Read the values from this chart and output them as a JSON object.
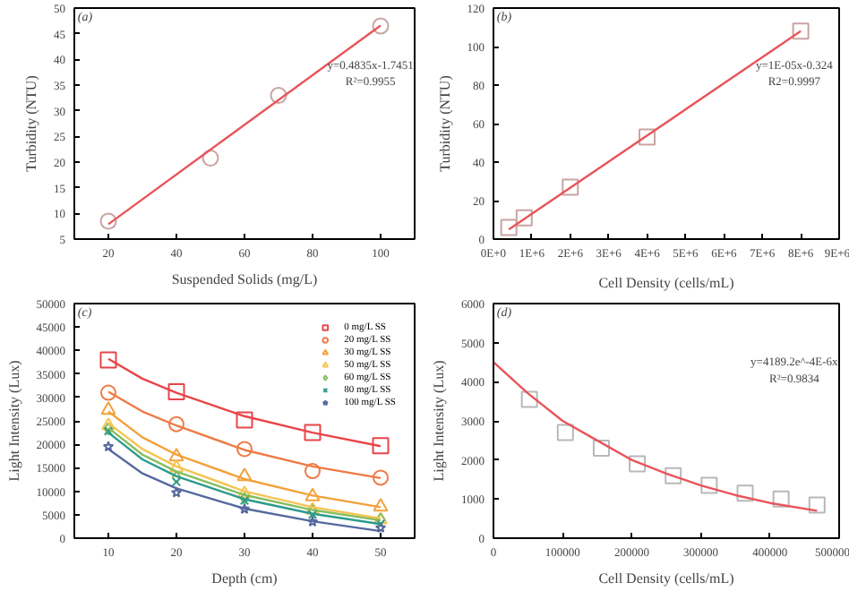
{
  "chart_data": [
    {
      "type": "scatter",
      "title": null,
      "xlabel": "Suspended Solids (mg/L)",
      "ylabel": "Turbidity (NTU)",
      "annotations": [
        "(a)",
        "y=0.4835x-1.7451",
        "R²=0.9955"
      ],
      "xlim": [
        10,
        110
      ],
      "xticks": [
        20,
        40,
        60,
        80,
        100
      ],
      "ylim": [
        5,
        50
      ],
      "yticks": [
        5,
        10,
        15,
        20,
        25,
        30,
        35,
        40,
        45,
        50
      ],
      "grid": false,
      "legend": false,
      "series": [
        {
          "marker": "circle",
          "color": "#c9a3a3",
          "x": [
            20,
            50,
            70,
            100
          ],
          "values": [
            8.5,
            20.8,
            33,
            46.5
          ]
        },
        {
          "type": "line",
          "marker": "none",
          "color": "#e8545a",
          "x": [
            20,
            100
          ],
          "values": [
            7.9,
            46.6
          ]
        }
      ]
    },
    {
      "type": "scatter",
      "xlabel": "Cell Density (cells/mL)",
      "ylabel": "Turbidity (NTU)",
      "annotations": [
        "(b)",
        "y=1E-05x-0.324",
        "R2=0.9997"
      ],
      "xlim": [
        0,
        9000000
      ],
      "xticks": [
        {
          "value": 0,
          "label": "0E+0"
        },
        {
          "value": 1000000,
          "label": "1E+6"
        },
        {
          "value": 2000000,
          "label": "2E+6"
        },
        {
          "value": 3000000,
          "label": "3E+6"
        },
        {
          "value": 4000000,
          "label": "4E+6"
        },
        {
          "value": 5000000,
          "label": "5E+6"
        },
        {
          "value": 6000000,
          "label": "6E+6"
        },
        {
          "value": 7000000,
          "label": "7E+6"
        },
        {
          "value": 8000000,
          "label": "8E+6"
        },
        {
          "value": 9000000,
          "label": "9E+6"
        }
      ],
      "ylim": [
        0,
        120
      ],
      "yticks": [
        0,
        20,
        40,
        60,
        80,
        100,
        120
      ],
      "grid": false,
      "legend": false,
      "series": [
        {
          "marker": "square",
          "color": "#c9a3a3",
          "x": [
            400000,
            800000,
            2000000,
            4000000,
            8000000
          ],
          "values": [
            6,
            11,
            27,
            53,
            108
          ]
        },
        {
          "type": "line",
          "marker": "none",
          "color": "#e8545a",
          "x": [
            400000,
            8000000
          ],
          "values": [
            5,
            108
          ]
        }
      ]
    },
    {
      "type": "line",
      "xlabel": "Depth (cm)",
      "ylabel": "Light Intensity (Lux)",
      "annotations": [
        "(c)"
      ],
      "xlim": [
        5,
        55
      ],
      "xticks": [
        10,
        20,
        30,
        40,
        50
      ],
      "ylim": [
        0,
        50000
      ],
      "yticks": [
        0,
        5000,
        10000,
        15000,
        20000,
        25000,
        30000,
        35000,
        40000,
        45000,
        50000
      ],
      "grid": false,
      "legend": "top right",
      "x": [
        10,
        20,
        30,
        40,
        50
      ],
      "series": [
        {
          "name": "0 mg/L SS",
          "type": "scatter",
          "marker": "square",
          "color": "#e8454a",
          "values": [
            38000,
            31200,
            25200,
            22500,
            19700
          ]
        },
        {
          "name": "20 mg/L SS",
          "type": "scatter",
          "marker": "circle",
          "color": "#ef7a45",
          "values": [
            31000,
            24300,
            19000,
            14300,
            12900
          ]
        },
        {
          "name": "30 mg/L SS",
          "type": "scatter",
          "marker": "triangle",
          "color": "#f3a13a",
          "values": [
            27300,
            17400,
            13200,
            8900,
            6700
          ]
        },
        {
          "name": "50 mg/L SS",
          "type": "scatter",
          "marker": "triangle",
          "color": "#f5c451",
          "values": [
            24000,
            15000,
            9500,
            6000,
            3900
          ]
        },
        {
          "name": "60 mg/L SS",
          "type": "scatter",
          "marker": "diamond",
          "color": "#86bd5e",
          "values": [
            23300,
            13000,
            8500,
            5800,
            4000
          ]
        },
        {
          "name": "80 mg/L SS",
          "type": "scatter",
          "marker": "cross",
          "color": "#2e9a8c",
          "values": [
            22800,
            12000,
            8000,
            5000,
            3000
          ]
        },
        {
          "name": "100 mg/L SS",
          "type": "scatter",
          "marker": "star",
          "color": "#56699f",
          "values": [
            19500,
            9700,
            6200,
            3500,
            2200
          ]
        },
        {
          "marker": "none",
          "color": "#e8454a",
          "x": [
            10,
            15,
            20,
            30,
            40,
            50
          ],
          "values": [
            38200,
            34000,
            31000,
            26000,
            22500,
            19600
          ]
        },
        {
          "marker": "none",
          "color": "#ef7a45",
          "x": [
            10,
            15,
            20,
            30,
            40,
            50
          ],
          "values": [
            31200,
            27000,
            24000,
            18800,
            15300,
            12800
          ]
        },
        {
          "marker": "none",
          "color": "#f3a13a",
          "x": [
            10,
            15,
            20,
            30,
            40,
            50
          ],
          "values": [
            27000,
            21500,
            17800,
            12600,
            9100,
            6600
          ]
        },
        {
          "marker": "none",
          "color": "#f5c451",
          "x": [
            10,
            15,
            20,
            30,
            40,
            50
          ],
          "values": [
            24500,
            19000,
            15300,
            10000,
            6600,
            4200
          ]
        },
        {
          "marker": "none",
          "color": "#86bd5e",
          "x": [
            10,
            15,
            20,
            30,
            40,
            50
          ],
          "values": [
            23500,
            17800,
            14200,
            9200,
            6000,
            3800
          ]
        },
        {
          "marker": "none",
          "color": "#2e9a8c",
          "x": [
            10,
            15,
            20,
            30,
            40,
            50
          ],
          "values": [
            22500,
            16800,
            13200,
            8300,
            5200,
            3000
          ]
        },
        {
          "marker": "none",
          "color": "#56699f",
          "x": [
            10,
            15,
            20,
            30,
            40,
            50
          ],
          "values": [
            19000,
            13800,
            10600,
            6300,
            3600,
            1500
          ]
        }
      ]
    },
    {
      "type": "scatter",
      "xlabel": "Cell Density (cells/mL)",
      "ylabel": "Light Intensity (Lux)",
      "annotations": [
        "(d)",
        "y=4189.2e^-4E-6x",
        "R²=0.9834"
      ],
      "xlim": [
        0,
        500000
      ],
      "xticks": [
        0,
        100000,
        200000,
        300000,
        400000,
        500000
      ],
      "ylim": [
        0,
        6000
      ],
      "yticks": [
        0,
        1000,
        2000,
        3000,
        4000,
        5000,
        6000
      ],
      "grid": false,
      "legend": false,
      "series": [
        {
          "marker": "square",
          "color": "#b8b8b8",
          "x": [
            52000,
            104000,
            156000,
            208000,
            260000,
            312000,
            364000,
            416000,
            468000
          ],
          "values": [
            3550,
            2700,
            2300,
            1900,
            1600,
            1350,
            1150,
            1000,
            850
          ]
        },
        {
          "type": "line",
          "marker": "none",
          "color": "#e8545a",
          "x": [
            0,
            50000,
            100000,
            150000,
            200000,
            250000,
            300000,
            350000,
            400000,
            468000
          ],
          "values": [
            4500,
            3700,
            3000,
            2500,
            2000,
            1650,
            1350,
            1100,
            900,
            700
          ]
        }
      ]
    }
  ]
}
